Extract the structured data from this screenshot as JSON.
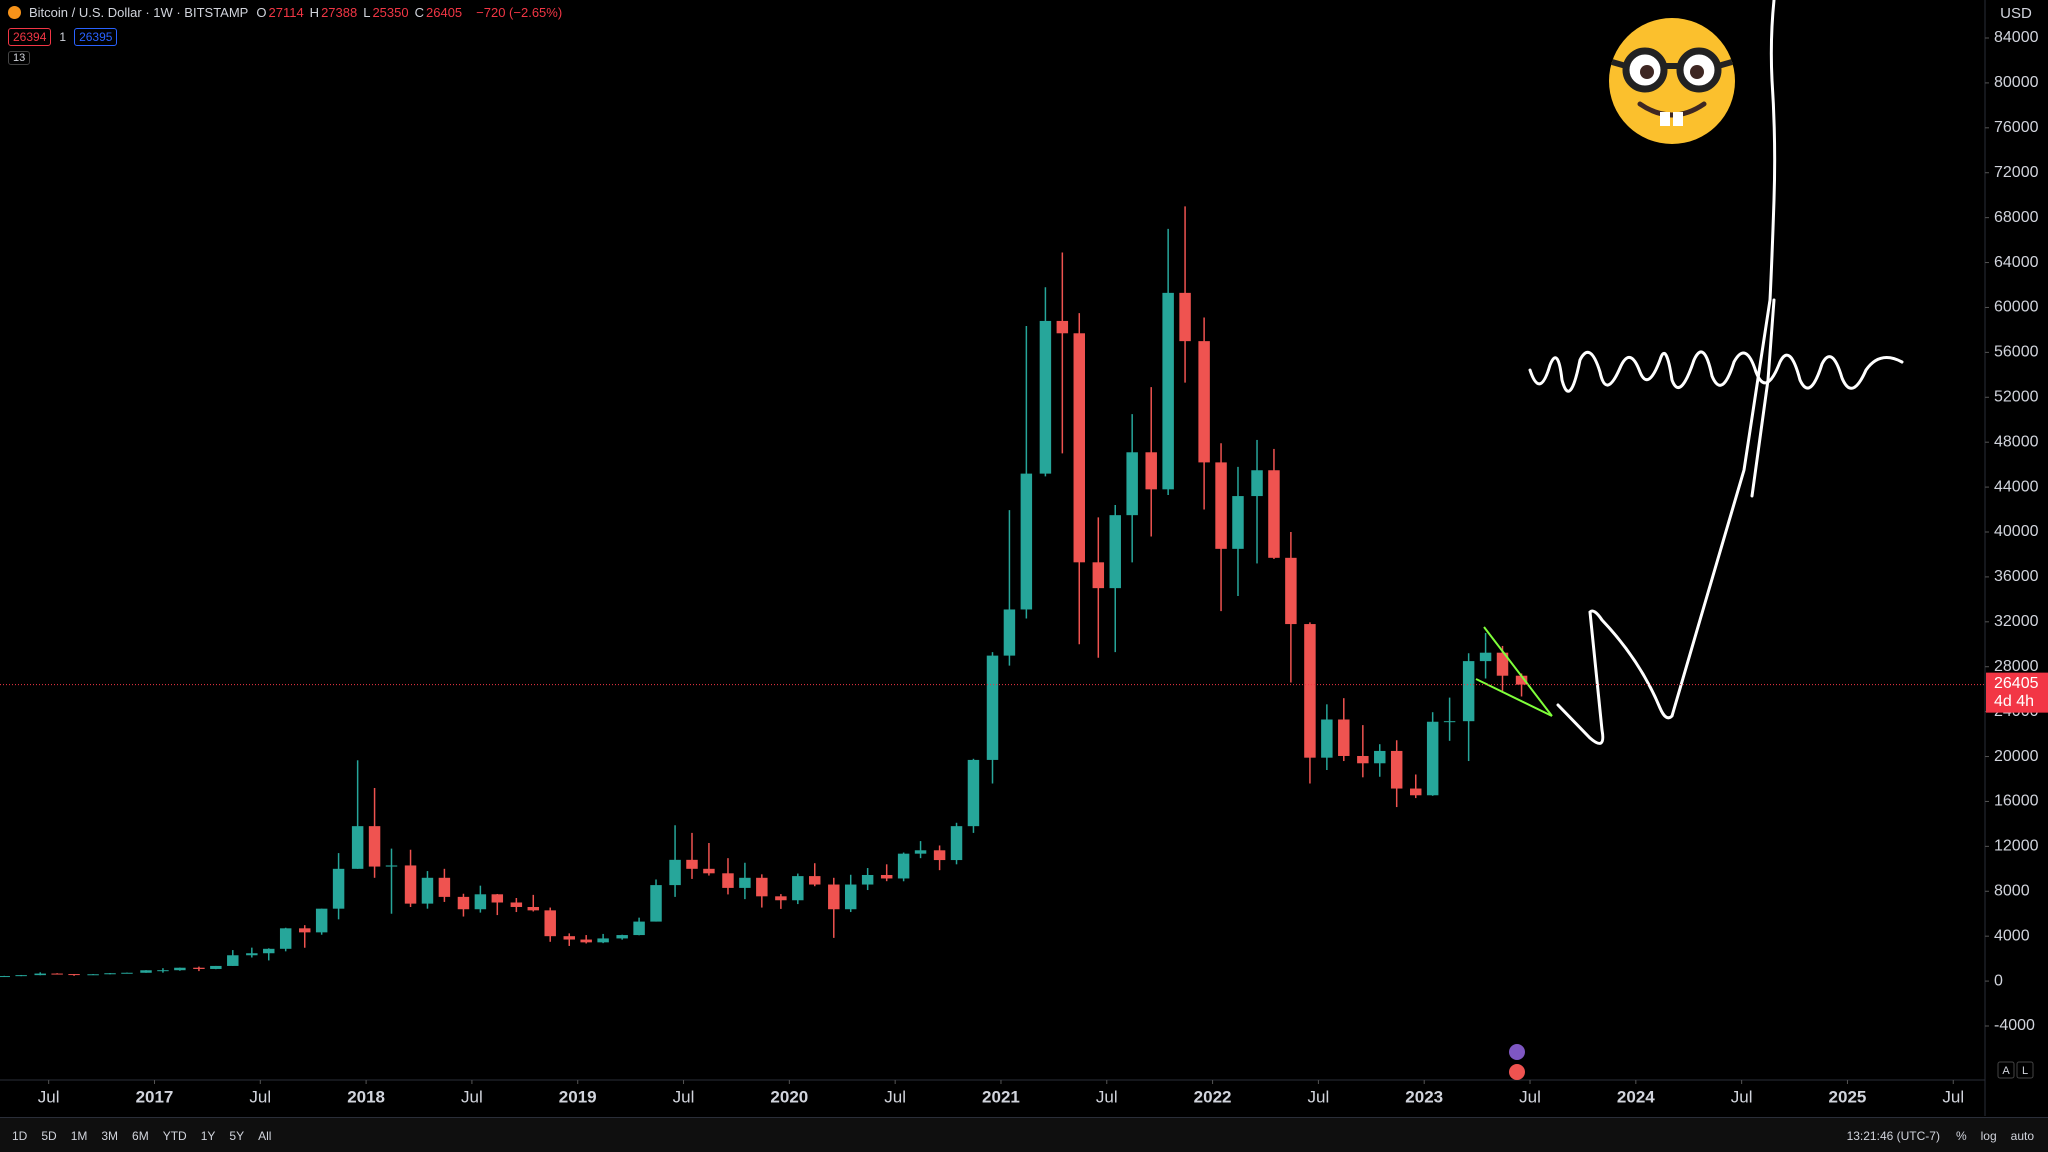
{
  "header": {
    "symbol": "Bitcoin / U.S. Dollar · 1W · BITSTAMP",
    "ohlc": [
      {
        "label": "O",
        "value": "27114"
      },
      {
        "label": "H",
        "value": "27388"
      },
      {
        "label": "L",
        "value": "25350"
      },
      {
        "label": "C",
        "value": "26405"
      }
    ],
    "change": "−720 (−2.65%)",
    "sell": "26394",
    "spread": "1",
    "buy": "26395",
    "indicators": "13"
  },
  "toolbar": {
    "ranges": [
      "1D",
      "5D",
      "1M",
      "3M",
      "6M",
      "YTD",
      "1Y",
      "5Y",
      "All"
    ],
    "clock": "13:21:46 (UTC-7)",
    "options": [
      "%",
      "log",
      "auto"
    ],
    "axis_buttons": [
      "A",
      "L"
    ]
  },
  "chart_data": {
    "type": "candlestick",
    "currency": "USD",
    "up_color": "#26a69a",
    "down_color": "#ef5350",
    "last_price": 26405,
    "countdown": "4d 4h",
    "last_price_color": "#f23645",
    "x": [
      2016.29,
      2016.37,
      2016.46,
      2016.54,
      2016.62,
      2016.71,
      2016.79,
      2016.87,
      2016.96,
      2017.04,
      2017.12,
      2017.21,
      2017.29,
      2017.37,
      2017.46,
      2017.54,
      2017.62,
      2017.71,
      2017.79,
      2017.87,
      2017.96,
      2018.04,
      2018.12,
      2018.21,
      2018.29,
      2018.37,
      2018.46,
      2018.54,
      2018.62,
      2018.71,
      2018.79,
      2018.87,
      2018.96,
      2019.04,
      2019.12,
      2019.21,
      2019.29,
      2019.37,
      2019.46,
      2019.54,
      2019.62,
      2019.71,
      2019.79,
      2019.87,
      2019.96,
      2020.04,
      2020.12,
      2020.21,
      2020.29,
      2020.37,
      2020.46,
      2020.54,
      2020.62,
      2020.71,
      2020.79,
      2020.87,
      2020.96,
      2021.04,
      2021.12,
      2021.21,
      2021.29,
      2021.37,
      2021.46,
      2021.54,
      2021.62,
      2021.71,
      2021.79,
      2021.87,
      2021.96,
      2022.04,
      2022.12,
      2022.21,
      2022.29,
      2022.37,
      2022.46,
      2022.54,
      2022.62,
      2022.71,
      2022.79,
      2022.87,
      2022.96,
      2023.04,
      2023.12,
      2023.21,
      2023.29,
      2023.37,
      2023.46
    ],
    "open": [
      416,
      448,
      530,
      670,
      624,
      575,
      608,
      700,
      742,
      963,
      970,
      1190,
      1080,
      1350,
      2300,
      2480,
      2875,
      4700,
      4340,
      6450,
      10000,
      13800,
      10200,
      10300,
      6900,
      9200,
      7500,
      6400,
      7730,
      7000,
      6600,
      6300,
      4000,
      3700,
      3450,
      3800,
      4100,
      5300,
      8550,
      10800,
      10000,
      9600,
      8300,
      9200,
      7550,
      7200,
      9350,
      8600,
      6400,
      8600,
      9450,
      9140,
      11350,
      11650,
      10780,
      13800,
      19700,
      28990,
      33100,
      45200,
      58800,
      57700,
      37300,
      35000,
      41500,
      47100,
      43800,
      61300,
      57000,
      46200,
      38500,
      43200,
      45500,
      37700,
      31800,
      19900,
      23300,
      20050,
      19400,
      20500,
      17150,
      16550,
      23100,
      23150,
      28500,
      29250,
      27200
    ],
    "high": [
      467,
      545,
      780,
      704,
      626,
      628,
      720,
      755,
      975,
      1150,
      1200,
      1290,
      1350,
      2760,
      2980,
      2920,
      4750,
      4980,
      6450,
      11400,
      19666,
      17200,
      11800,
      11700,
      9800,
      10000,
      7780,
      8500,
      7760,
      7400,
      7680,
      6550,
      4250,
      4100,
      4200,
      4130,
      5650,
      9050,
      13880,
      13200,
      12300,
      10950,
      10540,
      9510,
      7750,
      9580,
      10500,
      9200,
      9470,
      10070,
      10400,
      11450,
      12470,
      12080,
      14100,
      19800,
      29300,
      41950,
      58350,
      61800,
      64900,
      59500,
      41300,
      42400,
      50500,
      52900,
      67000,
      69000,
      59100,
      47900,
      45800,
      48200,
      47400,
      40000,
      31950,
      24650,
      25200,
      22800,
      21100,
      21450,
      18400,
      23950,
      25250,
      29200,
      31000,
      29850,
      27400
    ],
    "low": [
      414,
      439,
      518,
      605,
      470,
      570,
      603,
      680,
      740,
      750,
      920,
      890,
      1060,
      1350,
      2100,
      1840,
      2650,
      2970,
      4130,
      5500,
      10000,
      9200,
      6000,
      6600,
      6450,
      7050,
      5750,
      6100,
      5880,
      6150,
      6200,
      3500,
      3130,
      3350,
      3380,
      3690,
      4080,
      5300,
      7500,
      9100,
      9400,
      7720,
      7300,
      6550,
      6430,
      6860,
      8450,
      3850,
      6150,
      8110,
      8900,
      8890,
      10950,
      9880,
      10400,
      13200,
      17600,
      28100,
      32300,
      44950,
      47000,
      30000,
      28800,
      29300,
      37300,
      39600,
      43300,
      53300,
      42000,
      32950,
      34300,
      37200,
      37600,
      26600,
      17600,
      18800,
      19600,
      18150,
      18200,
      15500,
      16300,
      16500,
      21400,
      19600,
      26950,
      25850,
      25350
    ],
    "close": [
      448,
      530,
      670,
      624,
      575,
      608,
      700,
      742,
      963,
      970,
      1190,
      1080,
      1350,
      2300,
      2480,
      2875,
      4700,
      4340,
      6450,
      10000,
      13800,
      10200,
      10300,
      6900,
      9200,
      7500,
      6400,
      7730,
      7000,
      6600,
      6300,
      4000,
      3700,
      3450,
      3800,
      4100,
      5300,
      8550,
      10800,
      10000,
      9600,
      8300,
      9200,
      7550,
      7200,
      9350,
      8600,
      6400,
      8600,
      9450,
      9140,
      11350,
      11650,
      10780,
      13800,
      19700,
      28990,
      33100,
      45200,
      58800,
      57700,
      37300,
      35000,
      41500,
      47100,
      43800,
      61300,
      57000,
      46200,
      38500,
      43200,
      45500,
      37700,
      31800,
      19900,
      23300,
      20050,
      19400,
      20500,
      17150,
      16550,
      23100,
      23150,
      28500,
      29250,
      27200,
      26405
    ],
    "xlim": [
      2016.27,
      2025.65
    ],
    "xticks": [
      {
        "value": 2016.5,
        "label": "Jul"
      },
      2017,
      {
        "value": 2017.5,
        "label": "Jul"
      },
      2018,
      {
        "value": 2018.5,
        "label": "Jul"
      },
      2019,
      {
        "value": 2019.5,
        "label": "Jul"
      },
      2020,
      {
        "value": 2020.5,
        "label": "Jul"
      },
      2021,
      {
        "value": 2021.5,
        "label": "Jul"
      },
      2022,
      {
        "value": 2022.5,
        "label": "Jul"
      },
      2023,
      {
        "value": 2023.5,
        "label": "Jul"
      },
      2024,
      {
        "value": 2024.5,
        "label": "Jul"
      },
      2025,
      {
        "value": 2025.5,
        "label": "Jul"
      }
    ],
    "ylim": [
      -8810,
      87385
    ],
    "yticks": [
      -4000,
      0,
      4000,
      8000,
      12000,
      16000,
      20000,
      24000,
      28000,
      32000,
      36000,
      40000,
      44000,
      48000,
      52000,
      56000,
      60000,
      64000,
      68000,
      72000,
      76000,
      80000,
      84000
    ]
  }
}
